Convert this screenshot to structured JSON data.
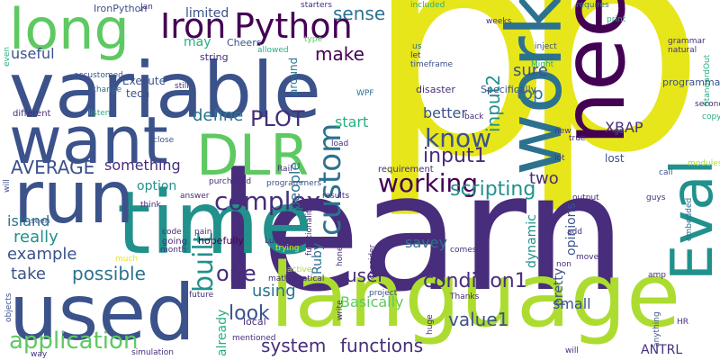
{
  "palette": {
    "dark_purple": "#440154",
    "indigo": "#472d7b",
    "slate_blue": "#3b528b",
    "steel_blue": "#2c728e",
    "teal": "#21918c",
    "sea_green": "#28ae80",
    "green": "#5ec962",
    "lime": "#addc30",
    "yellow": "#e6e61a"
  },
  "words": [
    "p",
    "p",
    "learn",
    "time",
    "variable",
    "language",
    "need",
    "work",
    "used",
    "want",
    "run",
    "long",
    "DLR",
    "Eval",
    "Iron",
    "Python",
    "know",
    "working",
    "custom",
    "complex",
    "built",
    "PLOT",
    "application",
    "AVERAGE",
    "input1",
    "input2",
    "condition1",
    "value1",
    "scripting",
    "functions",
    "system",
    "user",
    "make",
    "sense",
    "may",
    "limited",
    "useful",
    "define",
    "something",
    "example",
    "possible",
    "really",
    "look",
    "one",
    "using",
    "already",
    "people",
    "Ruby",
    "option",
    "island",
    "take",
    "start",
    "better",
    "top",
    "sure",
    "XBAP",
    "two",
    "opinions",
    "pretty",
    "dynamic",
    "small",
    "savey",
    "Basically",
    "ANTRL",
    "IronPython",
    "string",
    "Execute",
    "tech",
    "around",
    "Cheers",
    "hopefully",
    "Jan",
    "lost",
    "programmability",
    "print",
    "disaster",
    "Specifically",
    "StandardOut",
    "embedded",
    "anything",
    "HR",
    "Thanks",
    "huge",
    "local",
    "objects",
    "different",
    "listen",
    "change",
    "accustomed",
    "even",
    "starters",
    "included",
    "requires",
    "grammar",
    "natural",
    "Might",
    "inject",
    "timeframe",
    "let",
    "us",
    "allowed",
    "type",
    "weeks",
    "WPF",
    "still",
    "close",
    "Rail",
    "see",
    "modules",
    "call",
    "copy",
    "second",
    "true",
    "go",
    "lot",
    "new",
    "back",
    "load",
    "requirement",
    "purchased",
    "programmers",
    "results",
    "output",
    "guys",
    "add",
    "move",
    "non",
    "amp",
    "project",
    "comes",
    "honest",
    "Lua",
    "functionality",
    "consider",
    "write",
    "trying",
    "reactive",
    "mathematical",
    "seen",
    "answer",
    "think",
    "code",
    "pain",
    "going",
    "month",
    "future",
    "much",
    "mentioned",
    "simulation",
    "way",
    "will"
  ]
}
